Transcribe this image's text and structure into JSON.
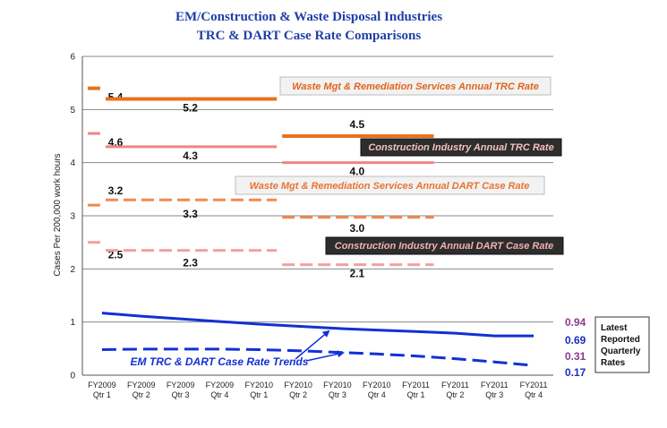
{
  "chart_data": {
    "type": "line",
    "title": "EM/Construction & Waste Disposal  Industries",
    "subtitle": "TRC & DART Case Rate Comparisons",
    "ylabel": "Cases Per 200,000 work hours",
    "xlabel": "",
    "ylim": [
      0,
      6
    ],
    "yticks": [
      "0",
      "1",
      "2",
      "3",
      "4",
      "5",
      "6"
    ],
    "grid": true,
    "categories": [
      [
        "FY2009",
        "Qtr 1"
      ],
      [
        "FY2009",
        "Qtr 2"
      ],
      [
        "FY2009",
        "Qtr 3"
      ],
      [
        "FY2009",
        "Qtr 4"
      ],
      [
        "FY2010",
        "Qtr 1"
      ],
      [
        "FY2010",
        "Qtr 2"
      ],
      [
        "FY2010",
        "Qtr 3"
      ],
      [
        "FY2010",
        "Qtr 4"
      ],
      [
        "FY2011",
        "Qtr 1"
      ],
      [
        "FY2011",
        "Qtr 2"
      ],
      [
        "FY2011",
        "Qtr 3"
      ],
      [
        "FY2011",
        "Qtr 4"
      ]
    ],
    "benchmarks": [
      {
        "name": "waste-trc",
        "color": "#e8731c",
        "dashed": false,
        "width": 4,
        "segments": [
          {
            "from": 0,
            "to": 0.5,
            "value": 5.4,
            "label": "5.4"
          },
          {
            "from": 0.5,
            "to": 5,
            "value": 5.2,
            "label": "5.2"
          },
          {
            "from": 5,
            "to": 9,
            "value": 4.5,
            "label": "4.5"
          }
        ]
      },
      {
        "name": "construction-trc",
        "color": "#f08484",
        "dashed": false,
        "width": 3,
        "segments": [
          {
            "from": 0,
            "to": 0.5,
            "value": 4.55,
            "label": "4.6"
          },
          {
            "from": 0.5,
            "to": 5,
            "value": 4.3,
            "label": "4.3"
          },
          {
            "from": 5,
            "to": 9,
            "value": 4.0,
            "label": "4.0"
          }
        ]
      },
      {
        "name": "waste-dart",
        "color": "#ef8a4e",
        "dashed": true,
        "width": 3,
        "segments": [
          {
            "from": 0,
            "to": 0.5,
            "value": 3.2,
            "label": "3.2"
          },
          {
            "from": 0.5,
            "to": 5,
            "value": 3.3,
            "label": "3.3"
          },
          {
            "from": 5,
            "to": 9,
            "value": 2.97,
            "label": "3.0"
          }
        ]
      },
      {
        "name": "construction-dart",
        "color": "#f3a0a0",
        "dashed": true,
        "width": 3,
        "segments": [
          {
            "from": 0,
            "to": 0.5,
            "value": 2.5,
            "label": "2.5"
          },
          {
            "from": 0.5,
            "to": 5,
            "value": 2.35,
            "label": "2.3"
          },
          {
            "from": 5,
            "to": 9,
            "value": 2.08,
            "label": "2.1"
          }
        ]
      }
    ],
    "series": [
      {
        "name": "EM TRC",
        "color": "#1230d4",
        "dashed": false,
        "values": [
          1.17,
          1.11,
          1.06,
          1.01,
          0.96,
          0.92,
          0.88,
          0.85,
          0.82,
          0.79,
          0.74,
          0.74
        ]
      },
      {
        "name": "EM DART",
        "color": "#1230d4",
        "dashed": true,
        "values": [
          0.48,
          0.49,
          0.49,
          0.49,
          0.48,
          0.46,
          0.43,
          0.4,
          0.36,
          0.31,
          0.25,
          0.18
        ]
      }
    ],
    "annotations": {
      "waste_trc": "Waste Mgt & Remediation Services Annual TRC Rate",
      "construction_trc": "Construction Industry Annual TRC Rate",
      "waste_dart": "Waste Mgt & Remediation Services Annual DART Case Rate",
      "construction_dart": "Construction Industry Annual DART Case Rate",
      "em_trends": "EM TRC & DART Case Rate Trends"
    },
    "latest_rates": {
      "label_lines": [
        "Latest",
        "Reported",
        "Quarterly",
        "Rates"
      ],
      "values": [
        {
          "text": "0.94",
          "color": "#8b3a8b"
        },
        {
          "text": "0.69",
          "color": "#1a2fb8"
        },
        {
          "text": "0.31",
          "color": "#8b3a8b"
        },
        {
          "text": "0.17",
          "color": "#1a2fb8"
        }
      ]
    }
  }
}
